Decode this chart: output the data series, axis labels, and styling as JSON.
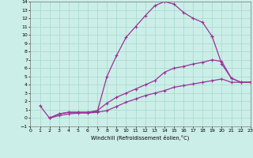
{
  "xlabel": "Windchill (Refroidissement éolien,°C)",
  "ylabel": "",
  "bg_color": "#cceee8",
  "grid_color": "#aaddcc",
  "line_color": "#993399",
  "xlim": [
    0,
    23
  ],
  "ylim": [
    -1,
    14
  ],
  "xticks": [
    0,
    1,
    2,
    3,
    4,
    5,
    6,
    7,
    8,
    9,
    10,
    11,
    12,
    13,
    14,
    15,
    16,
    17,
    18,
    19,
    20,
    21,
    22,
    23
  ],
  "yticks": [
    -1,
    0,
    1,
    2,
    3,
    4,
    5,
    6,
    7,
    8,
    9,
    10,
    11,
    12,
    13,
    14
  ],
  "series": [
    {
      "x": [
        1,
        2,
        3,
        4,
        5,
        6,
        7,
        8,
        9,
        10,
        11,
        12,
        13,
        14,
        15,
        16,
        17,
        18,
        19
      ],
      "y": [
        1.5,
        0.0,
        0.5,
        0.7,
        0.7,
        0.7,
        0.8,
        5.0,
        7.5,
        9.7,
        11.0,
        12.3,
        13.5,
        14.0,
        13.7,
        12.7,
        12.0,
        11.5,
        9.8
      ]
    },
    {
      "x": [
        19,
        20,
        21,
        22,
        23
      ],
      "y": [
        9.8,
        6.5,
        4.8,
        4.3,
        4.3
      ]
    },
    {
      "x": [
        2,
        3,
        4,
        5,
        6,
        7,
        8,
        9,
        10,
        11,
        12,
        13,
        14,
        15,
        16,
        17,
        18,
        19,
        20,
        21,
        22,
        23
      ],
      "y": [
        0.0,
        0.5,
        0.7,
        0.7,
        0.7,
        0.9,
        1.8,
        2.5,
        3.0,
        3.5,
        4.0,
        4.5,
        5.5,
        6.0,
        6.2,
        6.5,
        6.7,
        7.0,
        6.8,
        4.8,
        4.3,
        4.3
      ]
    },
    {
      "x": [
        2,
        3,
        4,
        5,
        6,
        7,
        8,
        9,
        10,
        11,
        12,
        13,
        14,
        15,
        16,
        17,
        18,
        19,
        20,
        21,
        22,
        23
      ],
      "y": [
        0.0,
        0.3,
        0.5,
        0.6,
        0.6,
        0.7,
        0.9,
        1.4,
        1.9,
        2.3,
        2.7,
        3.0,
        3.3,
        3.7,
        3.9,
        4.1,
        4.3,
        4.5,
        4.7,
        4.3,
        4.3,
        4.3
      ]
    }
  ]
}
